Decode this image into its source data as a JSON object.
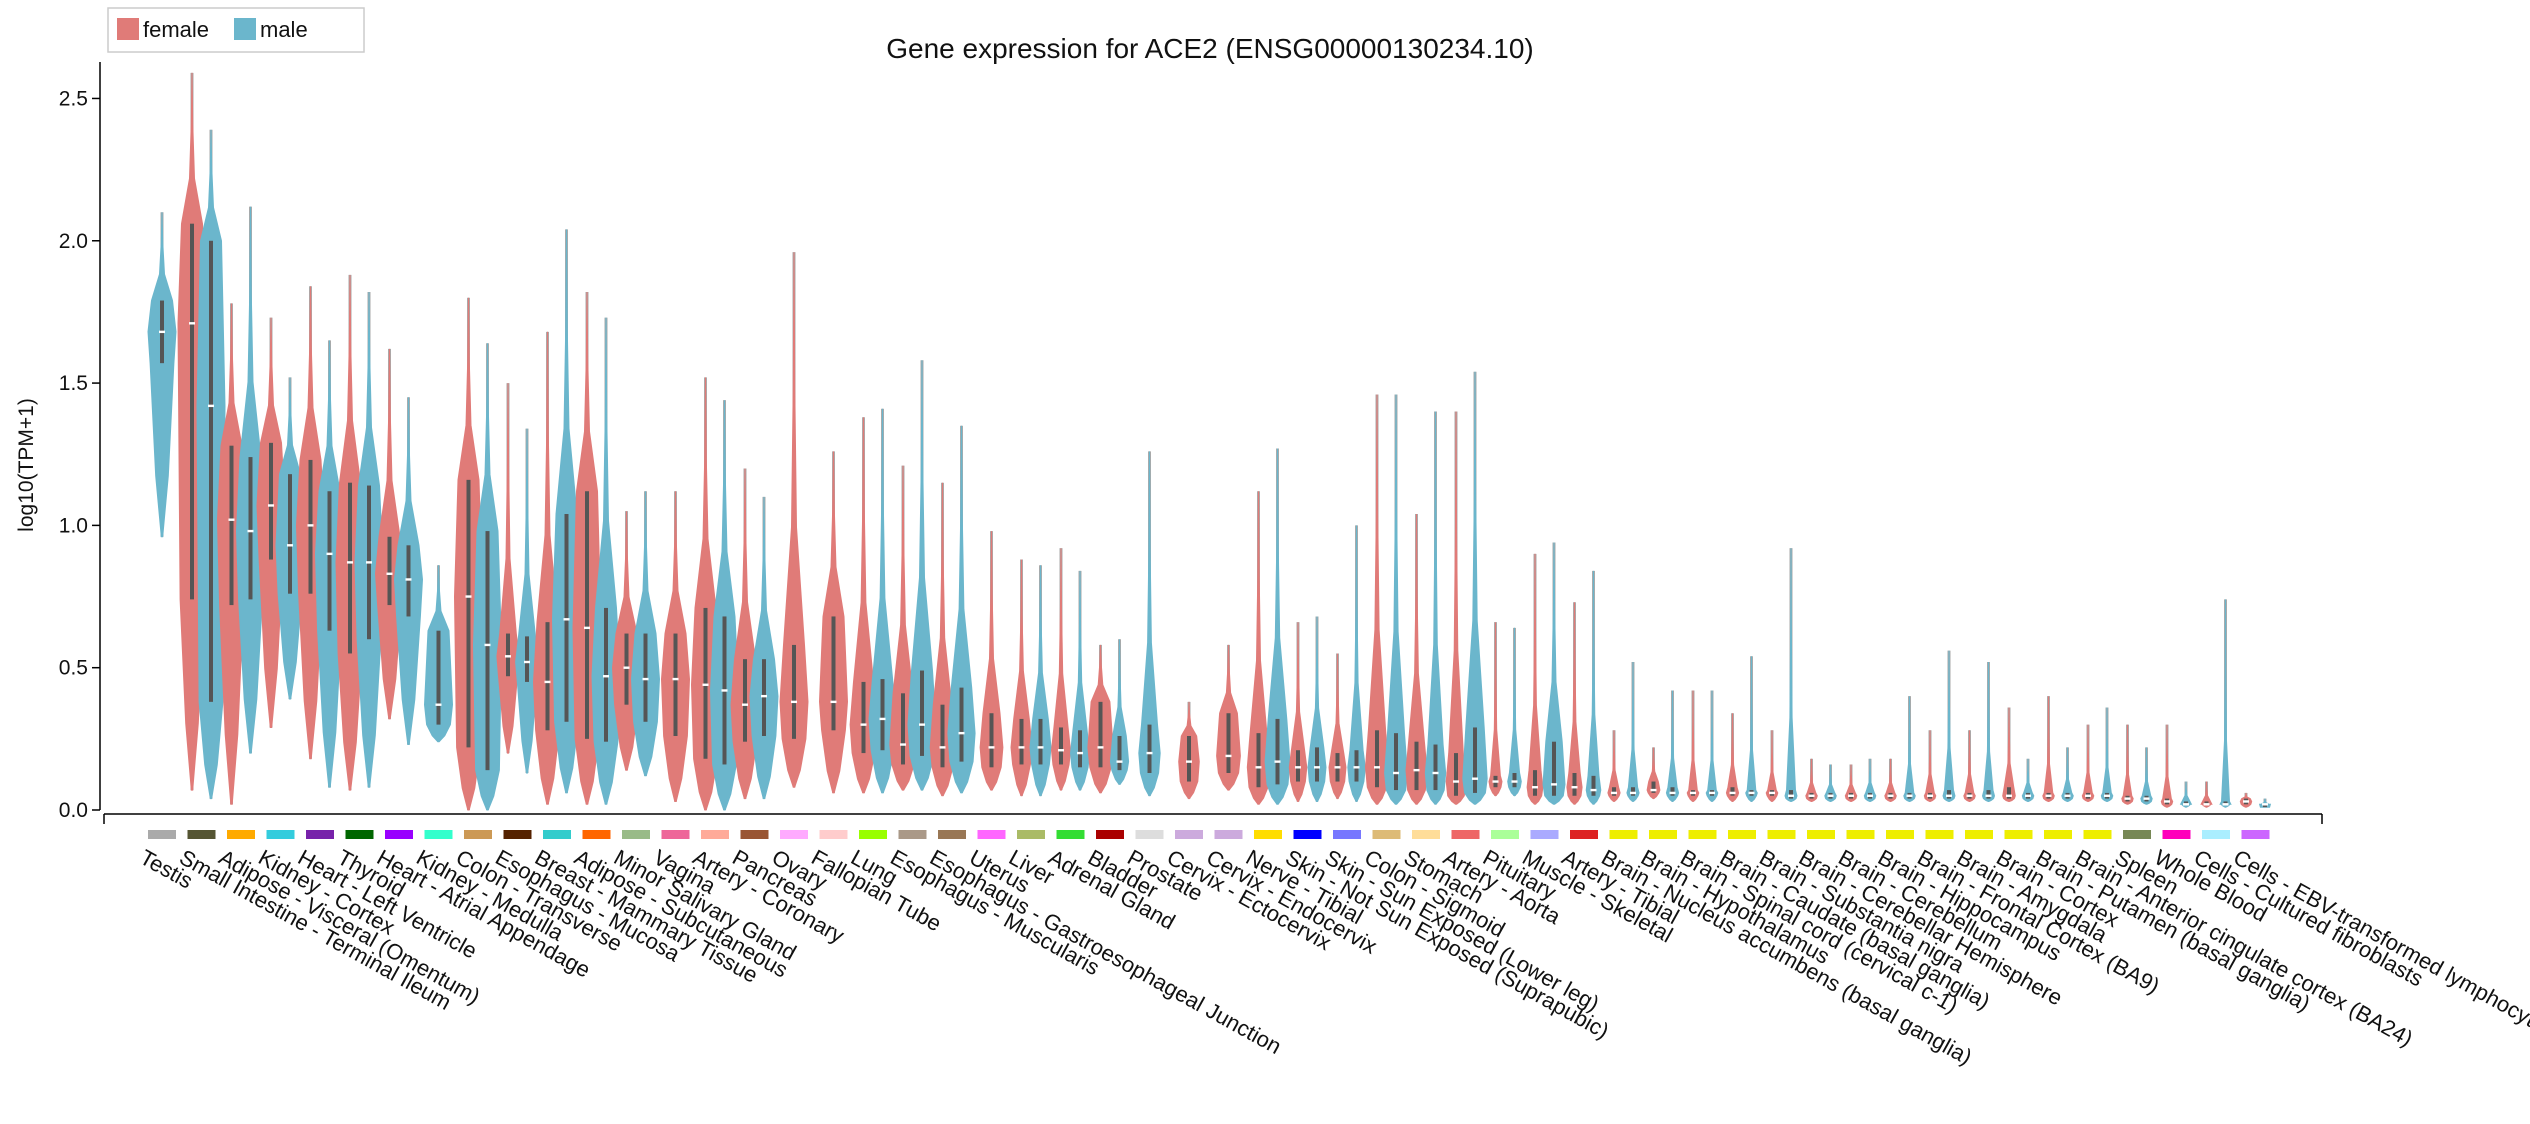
{
  "chart_data": {
    "type": "violin",
    "title": "Gene expression for ACE2 (ENSG00000130234.10)",
    "ylabel": "log10(TPM+1)",
    "ylim": [
      0,
      2.6
    ],
    "yticks": [
      "0.0",
      "0.5",
      "1.0",
      "1.5",
      "2.0",
      "2.5"
    ],
    "legend": {
      "position": "top-left",
      "entries": [
        {
          "name": "female",
          "color": "#e07b78"
        },
        {
          "name": "male",
          "color": "#6bb6cc"
        }
      ]
    },
    "categories": [
      {
        "name": "Testis",
        "color": "#aaaaaa",
        "male": [
          0.96,
          1.57,
          1.68,
          1.79,
          2.1
        ]
      },
      {
        "name": "Small Intestine - Terminal Ileum",
        "color": "#555533",
        "female": [
          0.07,
          0.74,
          1.71,
          2.06,
          2.59
        ],
        "male": [
          0.04,
          0.38,
          1.42,
          2.0,
          2.39
        ]
      },
      {
        "name": "Adipose - Visceral (Omentum)",
        "color": "#ffaa00",
        "female": [
          0.02,
          0.72,
          1.02,
          1.28,
          1.78
        ],
        "male": [
          0.2,
          0.74,
          0.98,
          1.24,
          2.12
        ]
      },
      {
        "name": "Kidney - Cortex",
        "color": "#33ccdd",
        "female": [
          0.29,
          0.88,
          1.07,
          1.29,
          1.73
        ],
        "male": [
          0.39,
          0.76,
          0.93,
          1.18,
          1.52
        ]
      },
      {
        "name": "Heart - Left Ventricle",
        "color": "#7722aa",
        "female": [
          0.18,
          0.76,
          1.0,
          1.23,
          1.84
        ],
        "male": [
          0.08,
          0.63,
          0.9,
          1.12,
          1.65
        ]
      },
      {
        "name": "Thyroid",
        "color": "#006600",
        "female": [
          0.07,
          0.55,
          0.87,
          1.15,
          1.88
        ],
        "male": [
          0.08,
          0.6,
          0.87,
          1.14,
          1.82
        ]
      },
      {
        "name": "Heart - Atrial Appendage",
        "color": "#9900ff",
        "female": [
          0.32,
          0.72,
          0.83,
          0.96,
          1.62
        ],
        "male": [
          0.23,
          0.68,
          0.81,
          0.93,
          1.45
        ]
      },
      {
        "name": "Kidney - Medulla",
        "color": "#33ffcc",
        "male": [
          0.24,
          0.3,
          0.37,
          0.63,
          0.86
        ]
      },
      {
        "name": "Colon - Transverse",
        "color": "#cc9955",
        "female": [
          0.0,
          0.22,
          0.75,
          1.16,
          1.8
        ],
        "male": [
          0.0,
          0.14,
          0.58,
          0.98,
          1.64
        ]
      },
      {
        "name": "Esophagus - Mucosa",
        "color": "#552200",
        "female": [
          0.2,
          0.47,
          0.54,
          0.62,
          1.5
        ],
        "male": [
          0.13,
          0.45,
          0.52,
          0.61,
          1.34
        ]
      },
      {
        "name": "Breast - Mammary Tissue",
        "color": "#33cccc",
        "female": [
          0.02,
          0.28,
          0.45,
          0.66,
          1.68
        ],
        "male": [
          0.06,
          0.31,
          0.67,
          1.04,
          2.04
        ]
      },
      {
        "name": "Adipose - Subcutaneous",
        "color": "#ff6600",
        "female": [
          0.02,
          0.25,
          0.64,
          1.12,
          1.82
        ],
        "male": [
          0.02,
          0.24,
          0.47,
          0.71,
          1.73
        ]
      },
      {
        "name": "Minor Salivary Gland",
        "color": "#99bb88",
        "female": [
          0.14,
          0.37,
          0.5,
          0.62,
          1.05
        ],
        "male": [
          0.12,
          0.31,
          0.46,
          0.62,
          1.12
        ]
      },
      {
        "name": "Vagina",
        "color": "#ee6699",
        "female": [
          0.03,
          0.26,
          0.46,
          0.62,
          1.12
        ]
      },
      {
        "name": "Artery - Coronary",
        "color": "#ffaa99",
        "female": [
          0.0,
          0.18,
          0.44,
          0.71,
          1.52
        ],
        "male": [
          0.0,
          0.16,
          0.42,
          0.68,
          1.44
        ]
      },
      {
        "name": "Pancreas",
        "color": "#995533",
        "female": [
          0.04,
          0.24,
          0.37,
          0.53,
          1.2
        ],
        "male": [
          0.04,
          0.26,
          0.4,
          0.53,
          1.1
        ]
      },
      {
        "name": "Ovary",
        "color": "#ffaaff",
        "female": [
          0.08,
          0.25,
          0.38,
          0.58,
          1.96
        ]
      },
      {
        "name": "Fallopian Tube",
        "color": "#ffcccc",
        "female": [
          0.06,
          0.28,
          0.38,
          0.68,
          1.26
        ]
      },
      {
        "name": "Lung",
        "color": "#99ff00",
        "female": [
          0.06,
          0.2,
          0.3,
          0.45,
          1.38
        ],
        "male": [
          0.06,
          0.21,
          0.32,
          0.46,
          1.41
        ]
      },
      {
        "name": "Esophagus - Muscularis",
        "color": "#aa9988",
        "female": [
          0.07,
          0.16,
          0.23,
          0.41,
          1.21
        ],
        "male": [
          0.07,
          0.19,
          0.3,
          0.49,
          1.58
        ]
      },
      {
        "name": "Esophagus - Gastroesophageal Junction",
        "color": "#997755",
        "female": [
          0.05,
          0.15,
          0.22,
          0.37,
          1.15
        ],
        "male": [
          0.06,
          0.17,
          0.27,
          0.43,
          1.35
        ]
      },
      {
        "name": "Uterus",
        "color": "#ff66ff",
        "female": [
          0.07,
          0.15,
          0.22,
          0.34,
          0.98
        ]
      },
      {
        "name": "Liver",
        "color": "#aabb66",
        "female": [
          0.05,
          0.16,
          0.22,
          0.32,
          0.88
        ],
        "male": [
          0.05,
          0.16,
          0.22,
          0.32,
          0.86
        ]
      },
      {
        "name": "Adrenal Gland",
        "color": "#33dd33",
        "female": [
          0.07,
          0.16,
          0.21,
          0.29,
          0.92
        ],
        "male": [
          0.07,
          0.15,
          0.2,
          0.28,
          0.84
        ]
      },
      {
        "name": "Bladder",
        "color": "#aa0000",
        "female": [
          0.06,
          0.15,
          0.22,
          0.38,
          0.58
        ],
        "male": [
          0.09,
          0.14,
          0.17,
          0.26,
          0.6
        ]
      },
      {
        "name": "Prostate",
        "color": "#dddddd",
        "male": [
          0.05,
          0.13,
          0.2,
          0.3,
          1.26
        ]
      },
      {
        "name": "Cervix - Ectocervix",
        "color": "#ccaadd",
        "female": [
          0.04,
          0.1,
          0.17,
          0.26,
          0.38
        ]
      },
      {
        "name": "Cervix - Endocervix",
        "color": "#ccaadd",
        "female": [
          0.07,
          0.13,
          0.19,
          0.34,
          0.58
        ]
      },
      {
        "name": "Nerve - Tibial",
        "color": "#ffdd00",
        "female": [
          0.02,
          0.08,
          0.15,
          0.27,
          1.12
        ],
        "male": [
          0.02,
          0.09,
          0.17,
          0.32,
          1.27
        ]
      },
      {
        "name": "Skin - Not Sun Exposed (Suprapubic)",
        "color": "#0000ff",
        "female": [
          0.03,
          0.1,
          0.15,
          0.21,
          0.66
        ],
        "male": [
          0.03,
          0.1,
          0.15,
          0.22,
          0.68
        ]
      },
      {
        "name": "Skin - Sun Exposed (Lower leg)",
        "color": "#7777ff",
        "female": [
          0.04,
          0.1,
          0.15,
          0.2,
          0.55
        ],
        "male": [
          0.03,
          0.1,
          0.15,
          0.21,
          1.0
        ]
      },
      {
        "name": "Colon - Sigmoid",
        "color": "#ddbb77",
        "female": [
          0.02,
          0.08,
          0.15,
          0.28,
          1.46
        ],
        "male": [
          0.02,
          0.07,
          0.13,
          0.27,
          1.46
        ]
      },
      {
        "name": "Stomach",
        "color": "#ffdd99",
        "female": [
          0.02,
          0.07,
          0.14,
          0.24,
          1.04
        ],
        "male": [
          0.02,
          0.07,
          0.13,
          0.23,
          1.4
        ]
      },
      {
        "name": "Artery - Aorta",
        "color": "#ee6666",
        "female": [
          0.02,
          0.05,
          0.1,
          0.2,
          1.4
        ],
        "male": [
          0.02,
          0.06,
          0.11,
          0.29,
          1.54
        ]
      },
      {
        "name": "Pituitary",
        "color": "#aaff99",
        "female": [
          0.05,
          0.08,
          0.1,
          0.12,
          0.66
        ],
        "male": [
          0.05,
          0.08,
          0.1,
          0.13,
          0.64
        ]
      },
      {
        "name": "Muscle - Skeletal",
        "color": "#aaaaff",
        "female": [
          0.02,
          0.05,
          0.08,
          0.14,
          0.9
        ],
        "male": [
          0.02,
          0.05,
          0.09,
          0.24,
          0.94
        ]
      },
      {
        "name": "Artery - Tibial",
        "color": "#dd2222",
        "female": [
          0.02,
          0.05,
          0.08,
          0.13,
          0.73
        ],
        "male": [
          0.02,
          0.05,
          0.07,
          0.12,
          0.84
        ]
      },
      {
        "name": "Brain - Nucleus accumbens (basal ganglia)",
        "color": "#eeee00",
        "female": [
          0.03,
          0.05,
          0.06,
          0.08,
          0.28
        ],
        "male": [
          0.03,
          0.05,
          0.06,
          0.08,
          0.52
        ]
      },
      {
        "name": "Brain - Hypothalamus",
        "color": "#eeee00",
        "female": [
          0.04,
          0.06,
          0.07,
          0.1,
          0.22
        ],
        "male": [
          0.03,
          0.05,
          0.06,
          0.08,
          0.42
        ]
      },
      {
        "name": "Brain - Spinal cord (cervical c-1)",
        "color": "#eeee00",
        "female": [
          0.03,
          0.05,
          0.06,
          0.07,
          0.42
        ],
        "male": [
          0.03,
          0.05,
          0.06,
          0.07,
          0.42
        ]
      },
      {
        "name": "Brain - Caudate (basal ganglia)",
        "color": "#eeee00",
        "female": [
          0.03,
          0.05,
          0.06,
          0.08,
          0.34
        ],
        "male": [
          0.03,
          0.05,
          0.06,
          0.07,
          0.54
        ]
      },
      {
        "name": "Brain - Substantia nigra",
        "color": "#eeee00",
        "female": [
          0.03,
          0.05,
          0.06,
          0.07,
          0.28
        ],
        "male": [
          0.03,
          0.04,
          0.05,
          0.07,
          0.92
        ]
      },
      {
        "name": "Brain - Cerebellar Hemisphere",
        "color": "#eeee00",
        "female": [
          0.03,
          0.04,
          0.05,
          0.06,
          0.18
        ],
        "male": [
          0.03,
          0.04,
          0.05,
          0.06,
          0.16
        ]
      },
      {
        "name": "Brain - Cerebellum",
        "color": "#eeee00",
        "female": [
          0.03,
          0.04,
          0.05,
          0.06,
          0.16
        ],
        "male": [
          0.03,
          0.04,
          0.05,
          0.06,
          0.18
        ]
      },
      {
        "name": "Brain - Hippocampus",
        "color": "#eeee00",
        "female": [
          0.03,
          0.04,
          0.05,
          0.06,
          0.18
        ],
        "male": [
          0.03,
          0.04,
          0.05,
          0.06,
          0.4
        ]
      },
      {
        "name": "Brain - Frontal Cortex (BA9)",
        "color": "#eeee00",
        "female": [
          0.03,
          0.04,
          0.05,
          0.06,
          0.28
        ],
        "male": [
          0.03,
          0.04,
          0.05,
          0.07,
          0.56
        ]
      },
      {
        "name": "Brain - Amygdala",
        "color": "#eeee00",
        "female": [
          0.03,
          0.04,
          0.05,
          0.06,
          0.28
        ],
        "male": [
          0.03,
          0.04,
          0.05,
          0.07,
          0.52
        ]
      },
      {
        "name": "Brain - Cortex",
        "color": "#eeee00",
        "female": [
          0.03,
          0.04,
          0.05,
          0.08,
          0.36
        ],
        "male": [
          0.03,
          0.04,
          0.05,
          0.06,
          0.18
        ]
      },
      {
        "name": "Brain - Putamen (basal ganglia)",
        "color": "#eeee00",
        "female": [
          0.03,
          0.04,
          0.05,
          0.06,
          0.4
        ],
        "male": [
          0.03,
          0.04,
          0.05,
          0.06,
          0.22
        ]
      },
      {
        "name": "Brain - Anterior cingulate cortex (BA24)",
        "color": "#eeee00",
        "female": [
          0.03,
          0.04,
          0.05,
          0.06,
          0.3
        ],
        "male": [
          0.03,
          0.04,
          0.05,
          0.06,
          0.36
        ]
      },
      {
        "name": "Spleen",
        "color": "#778855",
        "female": [
          0.02,
          0.03,
          0.04,
          0.05,
          0.3
        ],
        "male": [
          0.02,
          0.03,
          0.04,
          0.05,
          0.22
        ]
      },
      {
        "name": "Whole Blood",
        "color": "#ff00bb",
        "female": [
          0.01,
          0.02,
          0.03,
          0.04,
          0.3
        ],
        "male": [
          0.01,
          0.02,
          0.02,
          0.03,
          0.1
        ]
      },
      {
        "name": "Cells - Cultured fibroblasts",
        "color": "#aaeeff",
        "female": [
          0.01,
          0.02,
          0.02,
          0.03,
          0.1
        ],
        "male": [
          0.01,
          0.02,
          0.02,
          0.03,
          0.74
        ]
      },
      {
        "name": "Cells - EBV-transformed lymphocytes",
        "color": "#cc66ff",
        "female": [
          0.01,
          0.02,
          0.03,
          0.04,
          0.06
        ],
        "male": [
          0.01,
          0.01,
          0.02,
          0.02,
          0.04
        ]
      }
    ]
  }
}
